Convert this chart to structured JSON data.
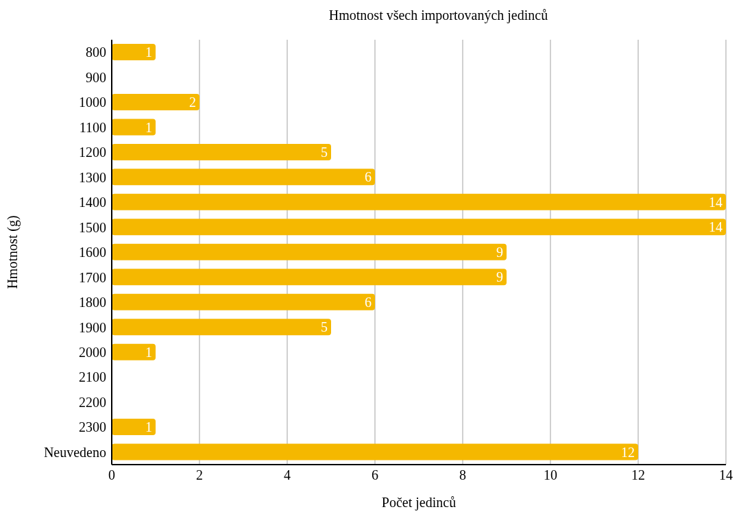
{
  "chart_data": {
    "type": "bar",
    "orientation": "horizontal",
    "title": "Hmotnost všech importovaných jedinců",
    "xlabel": "Počet jedinců",
    "ylabel": "Hmotnost (g)",
    "categories": [
      "800",
      "900",
      "1000",
      "1100",
      "1200",
      "1300",
      "1400",
      "1500",
      "1600",
      "1700",
      "1800",
      "1900",
      "2000",
      "2100",
      "2200",
      "2300",
      "Neuvedeno"
    ],
    "values": [
      1,
      null,
      2,
      1,
      5,
      6,
      14,
      14,
      9,
      9,
      6,
      5,
      1,
      null,
      null,
      1,
      12
    ],
    "color": "#f5b800",
    "xlim": [
      0,
      14
    ],
    "xticks": [
      0,
      2,
      4,
      6,
      8,
      10,
      12,
      14
    ],
    "grid": "x",
    "data_labels": true,
    "legend": false
  }
}
